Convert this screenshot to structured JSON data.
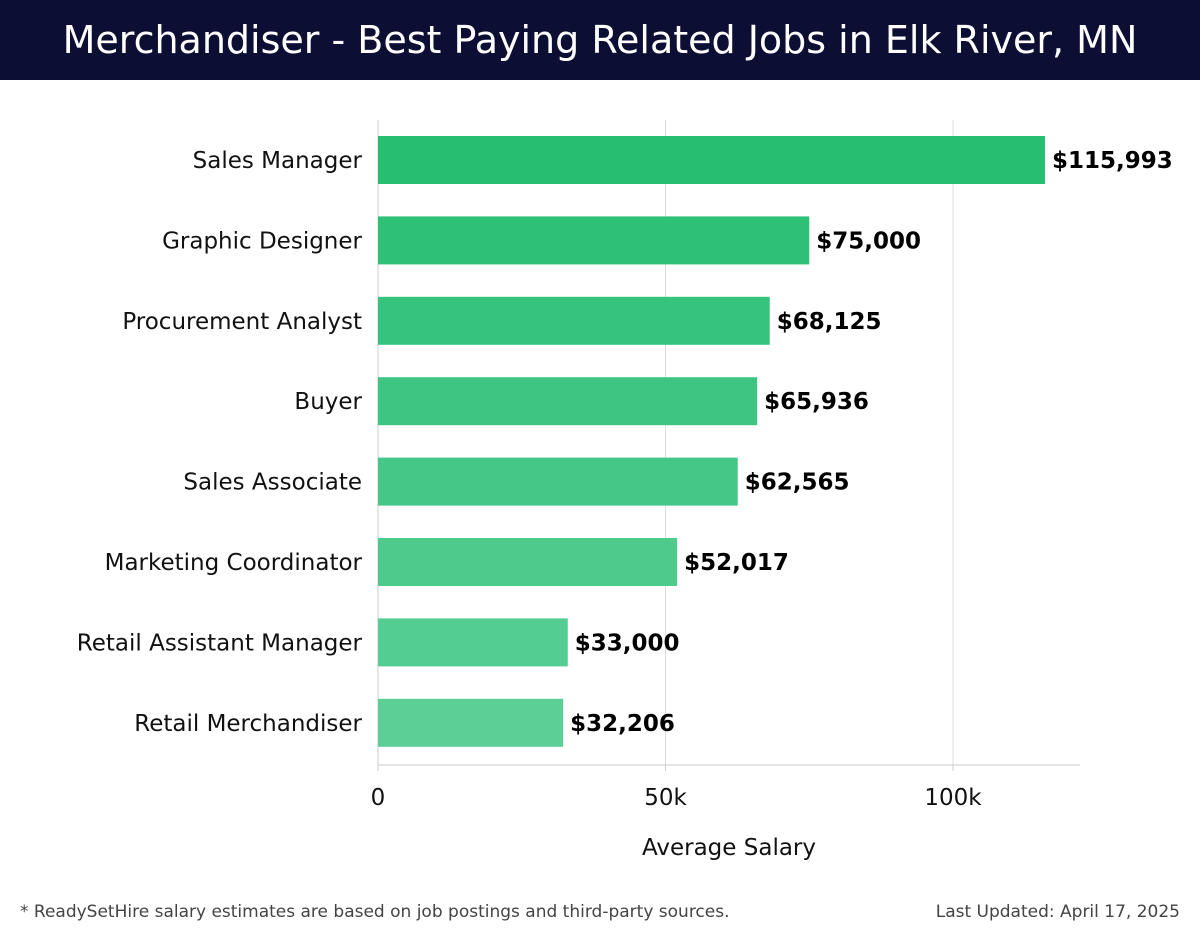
{
  "header": {
    "title": "Merchandiser - Best Paying Related Jobs in Elk River, MN"
  },
  "chart_data": {
    "type": "bar",
    "orientation": "horizontal",
    "title": "Merchandiser - Best Paying Related Jobs in Elk River, MN",
    "xlabel": "Average Salary",
    "ylabel": "",
    "categories": [
      "Sales Manager",
      "Graphic Designer",
      "Procurement Analyst",
      "Buyer",
      "Sales Associate",
      "Marketing Coordinator",
      "Retail Assistant Manager",
      "Retail Merchandiser"
    ],
    "values": [
      115993,
      75000,
      68125,
      65936,
      62565,
      52017,
      33000,
      32206
    ],
    "value_labels": [
      "$115,993",
      "$75,000",
      "$68,125",
      "$65,936",
      "$62,565",
      "$52,017",
      "$33,000",
      "$32,206"
    ],
    "xlim": [
      0,
      122000
    ],
    "xticks": [
      0,
      50000,
      100000
    ],
    "xtick_labels": [
      "0",
      "50k",
      "100k"
    ],
    "grid": "vertical",
    "legend": "none",
    "colors": {
      "bar_top": "#27be72",
      "bar_gradient_end": "#5ccf97",
      "grid": "#dddddd",
      "axis": "#cccccc",
      "label": "#111111",
      "value_label": "#000000"
    }
  },
  "footer": {
    "note": "* ReadySetHire salary estimates are based on job postings and third-party sources.",
    "updated": "Last Updated: April 17, 2025"
  }
}
